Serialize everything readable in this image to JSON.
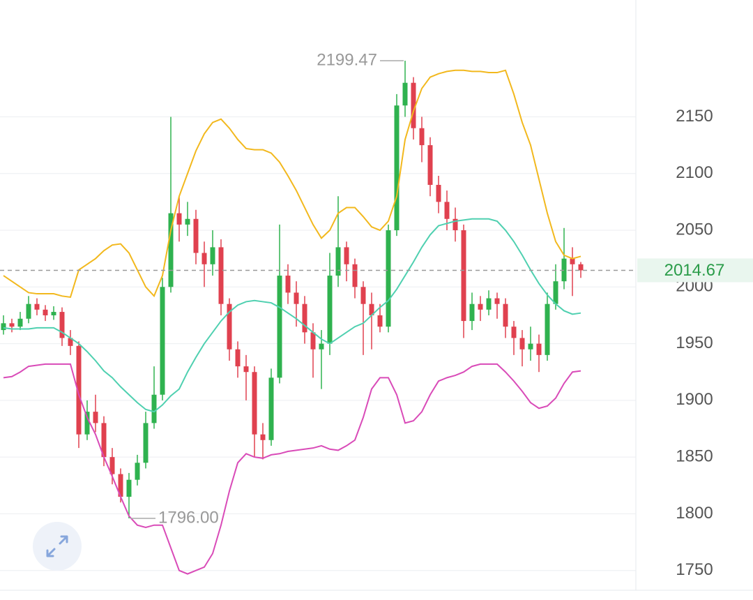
{
  "chart_data": {
    "type": "candlestick",
    "categories": [
      null,
      null,
      null,
      null,
      null,
      null,
      null,
      null,
      null,
      null,
      null,
      null,
      null,
      null,
      null,
      null,
      null,
      null,
      null,
      null,
      null,
      null,
      null,
      null,
      null,
      null,
      null,
      null,
      null,
      null,
      null,
      null,
      null,
      null,
      null,
      null,
      null,
      null,
      null,
      null,
      null,
      null,
      null,
      null,
      null,
      null,
      null,
      null,
      null,
      null,
      null,
      null,
      null,
      null,
      null,
      null,
      null,
      null,
      null,
      null,
      null,
      null,
      null,
      null,
      null,
      null,
      null,
      null,
      null,
      null
    ],
    "open": [
      1962,
      1968,
      1965,
      1972,
      1985,
      1980,
      1975,
      1978,
      1955,
      1948,
      1870,
      1890,
      1880,
      1850,
      1835,
      1815,
      1830,
      1845,
      1880,
      1905,
      2000,
      2065,
      2055,
      2060,
      2030,
      2020,
      2035,
      1985,
      1945,
      1930,
      1925,
      1870,
      1865,
      1920,
      2010,
      1995,
      1985,
      1960,
      1945,
      1950,
      2010,
      2035,
      2020,
      2000,
      1985,
      1975,
      1965,
      2050,
      2160,
      2180,
      2140,
      2125,
      2090,
      2075,
      2060,
      2050,
      1970,
      1985,
      1980,
      1990,
      1985,
      1965,
      1955,
      1945,
      1950,
      1940,
      1985,
      2005,
      2025,
      2020
    ],
    "high": [
      1975,
      1972,
      1978,
      1992,
      1990,
      1984,
      1983,
      1982,
      1962,
      1952,
      1900,
      1905,
      1886,
      1858,
      1840,
      1836,
      1852,
      1890,
      1930,
      2008,
      2150,
      2080,
      2075,
      2068,
      2040,
      2050,
      2042,
      1990,
      1952,
      1940,
      1930,
      1880,
      1928,
      2055,
      2020,
      2005,
      1992,
      1968,
      1962,
      2030,
      2080,
      2040,
      2025,
      2005,
      1995,
      1985,
      2055,
      2170,
      2199.47,
      2185,
      2150,
      2132,
      2098,
      2085,
      2070,
      2055,
      1995,
      1992,
      1997,
      1995,
      1990,
      1970,
      1962,
      1965,
      1958,
      1995,
      2020,
      2052,
      2035,
      2022
    ],
    "low": [
      1958,
      1960,
      1962,
      1968,
      1975,
      1970,
      1971,
      1948,
      1940,
      1858,
      1865,
      1872,
      1842,
      1826,
      1810,
      1796,
      1825,
      1840,
      1875,
      1900,
      1995,
      2040,
      2045,
      2020,
      2000,
      2010,
      1975,
      1935,
      1920,
      1900,
      1850,
      1848,
      1860,
      1915,
      1985,
      1965,
      1950,
      1920,
      1910,
      1940,
      2000,
      2005,
      1990,
      1940,
      1945,
      1960,
      1960,
      2045,
      2150,
      2130,
      2110,
      2080,
      2065,
      2050,
      2040,
      1955,
      1962,
      1970,
      1975,
      1972,
      1955,
      1940,
      1930,
      1935,
      1925,
      1935,
      1980,
      1998,
      1992,
      2008
    ],
    "close": [
      1968,
      1965,
      1972,
      1985,
      1980,
      1975,
      1978,
      1955,
      1948,
      1870,
      1890,
      1880,
      1850,
      1835,
      1815,
      1830,
      1845,
      1880,
      1905,
      2000,
      2065,
      2055,
      2060,
      2030,
      2020,
      2035,
      1985,
      1945,
      1930,
      1925,
      1870,
      1865,
      1920,
      2010,
      1995,
      1985,
      1960,
      1945,
      1950,
      2010,
      2035,
      2020,
      2000,
      1985,
      1975,
      1965,
      2050,
      2160,
      2180,
      2140,
      2125,
      2090,
      2075,
      2060,
      2050,
      1970,
      1985,
      1980,
      1990,
      1985,
      1965,
      1955,
      1945,
      1950,
      1940,
      1985,
      2005,
      2025,
      2020,
      2014.67
    ],
    "up_color": "#2fb24f",
    "down_color": "#e0414f",
    "series": [
      {
        "color": "#f2b81d",
        "values": [
          2010,
          2005,
          2000,
          1995,
          1994,
          1994,
          1994,
          1992,
          1991,
          2015,
          2020,
          2025,
          2032,
          2037,
          2038,
          2030,
          2015,
          2000,
          1992,
          2010,
          2050,
          2080,
          2100,
          2120,
          2135,
          2145,
          2148,
          2140,
          2130,
          2122,
          2121,
          2121,
          2118,
          2110,
          2098,
          2085,
          2070,
          2055,
          2043,
          2050,
          2065,
          2070,
          2070,
          2062,
          2053,
          2050,
          2058,
          2080,
          2130,
          2155,
          2175,
          2185,
          2188,
          2190,
          2191,
          2191,
          2190,
          2190,
          2189,
          2189,
          2191,
          2170,
          2145,
          2125,
          2095,
          2065,
          2040,
          2028,
          2025,
          2027
        ]
      },
      {
        "color": "#4fd0b0",
        "values": [
          1964,
          1963,
          1963,
          1963,
          1964,
          1964,
          1964,
          1960,
          1955,
          1950,
          1943,
          1935,
          1926,
          1920,
          1912,
          1905,
          1898,
          1892,
          1890,
          1896,
          1904,
          1910,
          1925,
          1938,
          1950,
          1960,
          1970,
          1978,
          1984,
          1987,
          1988,
          1987,
          1986,
          1982,
          1977,
          1972,
          1966,
          1960,
          1954,
          1950,
          1955,
          1960,
          1965,
          1968,
          1975,
          1982,
          1988,
          1998,
          2010,
          2022,
          2035,
          2046,
          2054,
          2056,
          2058,
          2059,
          2060,
          2060,
          2060,
          2058,
          2050,
          2040,
          2028,
          2015,
          2003,
          1993,
          1985,
          1979,
          1976,
          1977
        ]
      },
      {
        "color": "#d94bb8",
        "values": [
          1920,
          1921,
          1925,
          1930,
          1931,
          1932,
          1932,
          1932,
          1932,
          1905,
          1885,
          1870,
          1850,
          1833,
          1815,
          1798,
          1790,
          1788,
          1790,
          1790,
          1770,
          1750,
          1747,
          1750,
          1753,
          1765,
          1790,
          1820,
          1845,
          1853,
          1850,
          1849,
          1852,
          1853,
          1855,
          1856,
          1857,
          1858,
          1860,
          1857,
          1856,
          1860,
          1865,
          1885,
          1910,
          1920,
          1920,
          1905,
          1880,
          1882,
          1890,
          1905,
          1917,
          1920,
          1922,
          1925,
          1930,
          1932,
          1932,
          1932,
          1925,
          1917,
          1908,
          1898,
          1893,
          1895,
          1902,
          1915,
          1925,
          1926
        ]
      }
    ],
    "ylim": [
      1724,
      2253
    ],
    "yticks": [
      1750,
      1800,
      1850,
      1900,
      1950,
      2000,
      2050,
      2100,
      2150
    ],
    "grid": true,
    "last_price": 2014.67,
    "high_label": {
      "value": 2199.47,
      "label": "2199.47"
    },
    "low_label": {
      "value": 1796,
      "label": "1796.00"
    }
  }
}
